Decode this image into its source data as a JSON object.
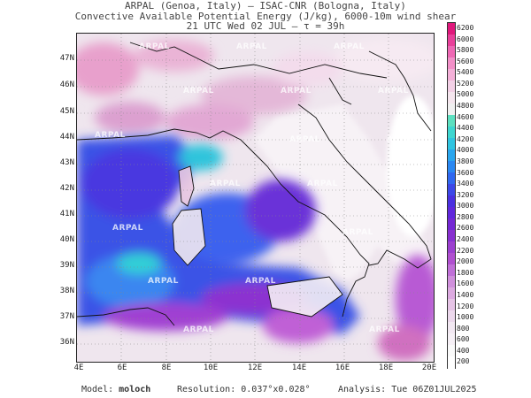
{
  "header": {
    "line1": "ARPAL (Genoa, Italy)  –  ISAC-CNR (Bologna, Italy)",
    "line2": "Convective Available Potential Energy (J/kg), 6000-10m wind shear",
    "line3": "21 UTC Wed 02 JUL  –  τ = 39h"
  },
  "map": {
    "watermark": "ARPAL",
    "lat_labels": [
      "47N",
      "46N",
      "45N",
      "44N",
      "43N",
      "42N",
      "41N",
      "40N",
      "39N",
      "38N",
      "37N",
      "36N"
    ],
    "lon_labels": [
      "4E",
      "6E",
      "8E",
      "10E",
      "12E",
      "14E",
      "16E",
      "18E",
      "20E"
    ]
  },
  "colorbar": {
    "ticks": [
      "6200",
      "6000",
      "5800",
      "5600",
      "5400",
      "5200",
      "5000",
      "4800",
      "4600",
      "4400",
      "4200",
      "4000",
      "3800",
      "3600",
      "3400",
      "3200",
      "3000",
      "2800",
      "2600",
      "2400",
      "2200",
      "2000",
      "1800",
      "1600",
      "1400",
      "1200",
      "1000",
      "800",
      "600",
      "400",
      "200"
    ],
    "colors": [
      "#e0187c",
      "#e8409a",
      "#ee68b4",
      "#f290c8",
      "#f4b0d8",
      "#f3d0e6",
      "#f5e6ee",
      "#f0f0f0",
      "#5de0c0",
      "#3ed6d0",
      "#30c4e0",
      "#2aa6ee",
      "#2a88f2",
      "#3068f0",
      "#3c48e8",
      "#4a30e0",
      "#6028dc",
      "#7428d4",
      "#8830d0",
      "#9c40d0",
      "#b050d0",
      "#c070d8",
      "#d090dc",
      "#dcaae0",
      "#e6c4e6",
      "#ecd8ec",
      "#f2e8f2",
      "#f6f0f6",
      "#fafafa",
      "#ffffff"
    ]
  },
  "footer": {
    "model_label": "Model:",
    "model_value": "moloch",
    "resolution_label": "Resolution:",
    "resolution_value": "0.037°x0.028°",
    "analysis_label": "Analysis:",
    "analysis_value": "Tue 06Z01JUL2025"
  }
}
